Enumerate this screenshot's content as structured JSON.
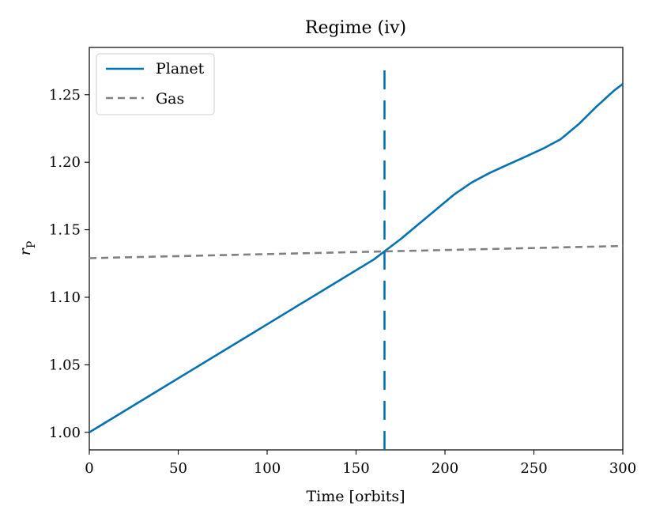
{
  "chart_data": {
    "type": "line",
    "title": "Regime (iv)",
    "xlabel": "Time [orbits]",
    "ylabel": "r",
    "ylabel_sub": "P",
    "xlim": [
      0,
      300
    ],
    "ylim": [
      0.987,
      1.285
    ],
    "xticks": [
      0,
      50,
      100,
      150,
      200,
      250,
      300
    ],
    "xtick_labels": [
      "0",
      "50",
      "100",
      "150",
      "200",
      "250",
      "300"
    ],
    "yticks": [
      1.0,
      1.05,
      1.1,
      1.15,
      1.2,
      1.25
    ],
    "ytick_labels": [
      "1.00",
      "1.05",
      "1.10",
      "1.15",
      "1.20",
      "1.25"
    ],
    "legend_position": "top-left",
    "series": [
      {
        "name": "Planet",
        "color": "#0072b2",
        "style": "solid",
        "x": [
          0,
          20,
          40,
          60,
          80,
          100,
          120,
          140,
          160,
          166,
          175,
          185,
          195,
          205,
          215,
          225,
          235,
          245,
          255,
          265,
          275,
          285,
          295,
          300
        ],
        "y": [
          1.0,
          1.016,
          1.032,
          1.048,
          1.064,
          1.08,
          1.096,
          1.112,
          1.128,
          1.134,
          1.143,
          1.154,
          1.165,
          1.176,
          1.185,
          1.192,
          1.198,
          1.204,
          1.21,
          1.217,
          1.228,
          1.241,
          1.253,
          1.258
        ]
      },
      {
        "name": "Gas",
        "color": "#808080",
        "style": "dashed",
        "x": [
          0,
          300
        ],
        "y": [
          1.129,
          1.138
        ]
      }
    ],
    "vline": {
      "x": 166,
      "color": "#0072b2",
      "style": "dashed"
    }
  }
}
